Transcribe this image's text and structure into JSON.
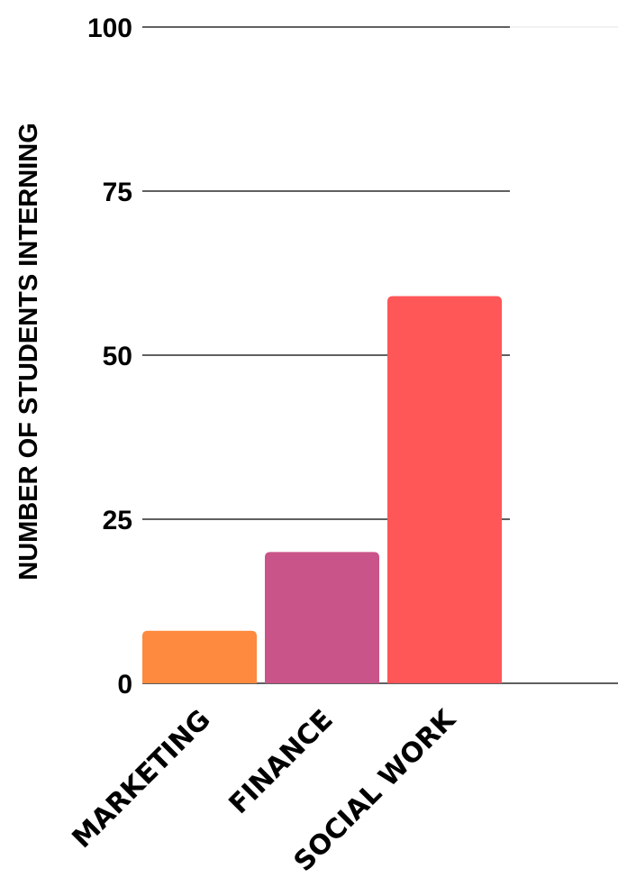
{
  "chart_data": {
    "type": "bar",
    "title": "",
    "xlabel": "",
    "ylabel": "NUMBER OF STUDENTS INTERNING",
    "categories": [
      "MARKETING",
      "FINANCE",
      "SOCIAL WORK"
    ],
    "values": [
      8,
      20,
      59
    ],
    "bar_colors": [
      "#fd8a3e",
      "#c95489",
      "#ff5658"
    ],
    "ylim": [
      0,
      100
    ],
    "yticks": [
      0,
      25,
      50,
      75,
      100
    ],
    "ytick_labels": [
      "0",
      "25",
      "50",
      "75",
      "100"
    ],
    "grid": true,
    "legend": "none"
  }
}
